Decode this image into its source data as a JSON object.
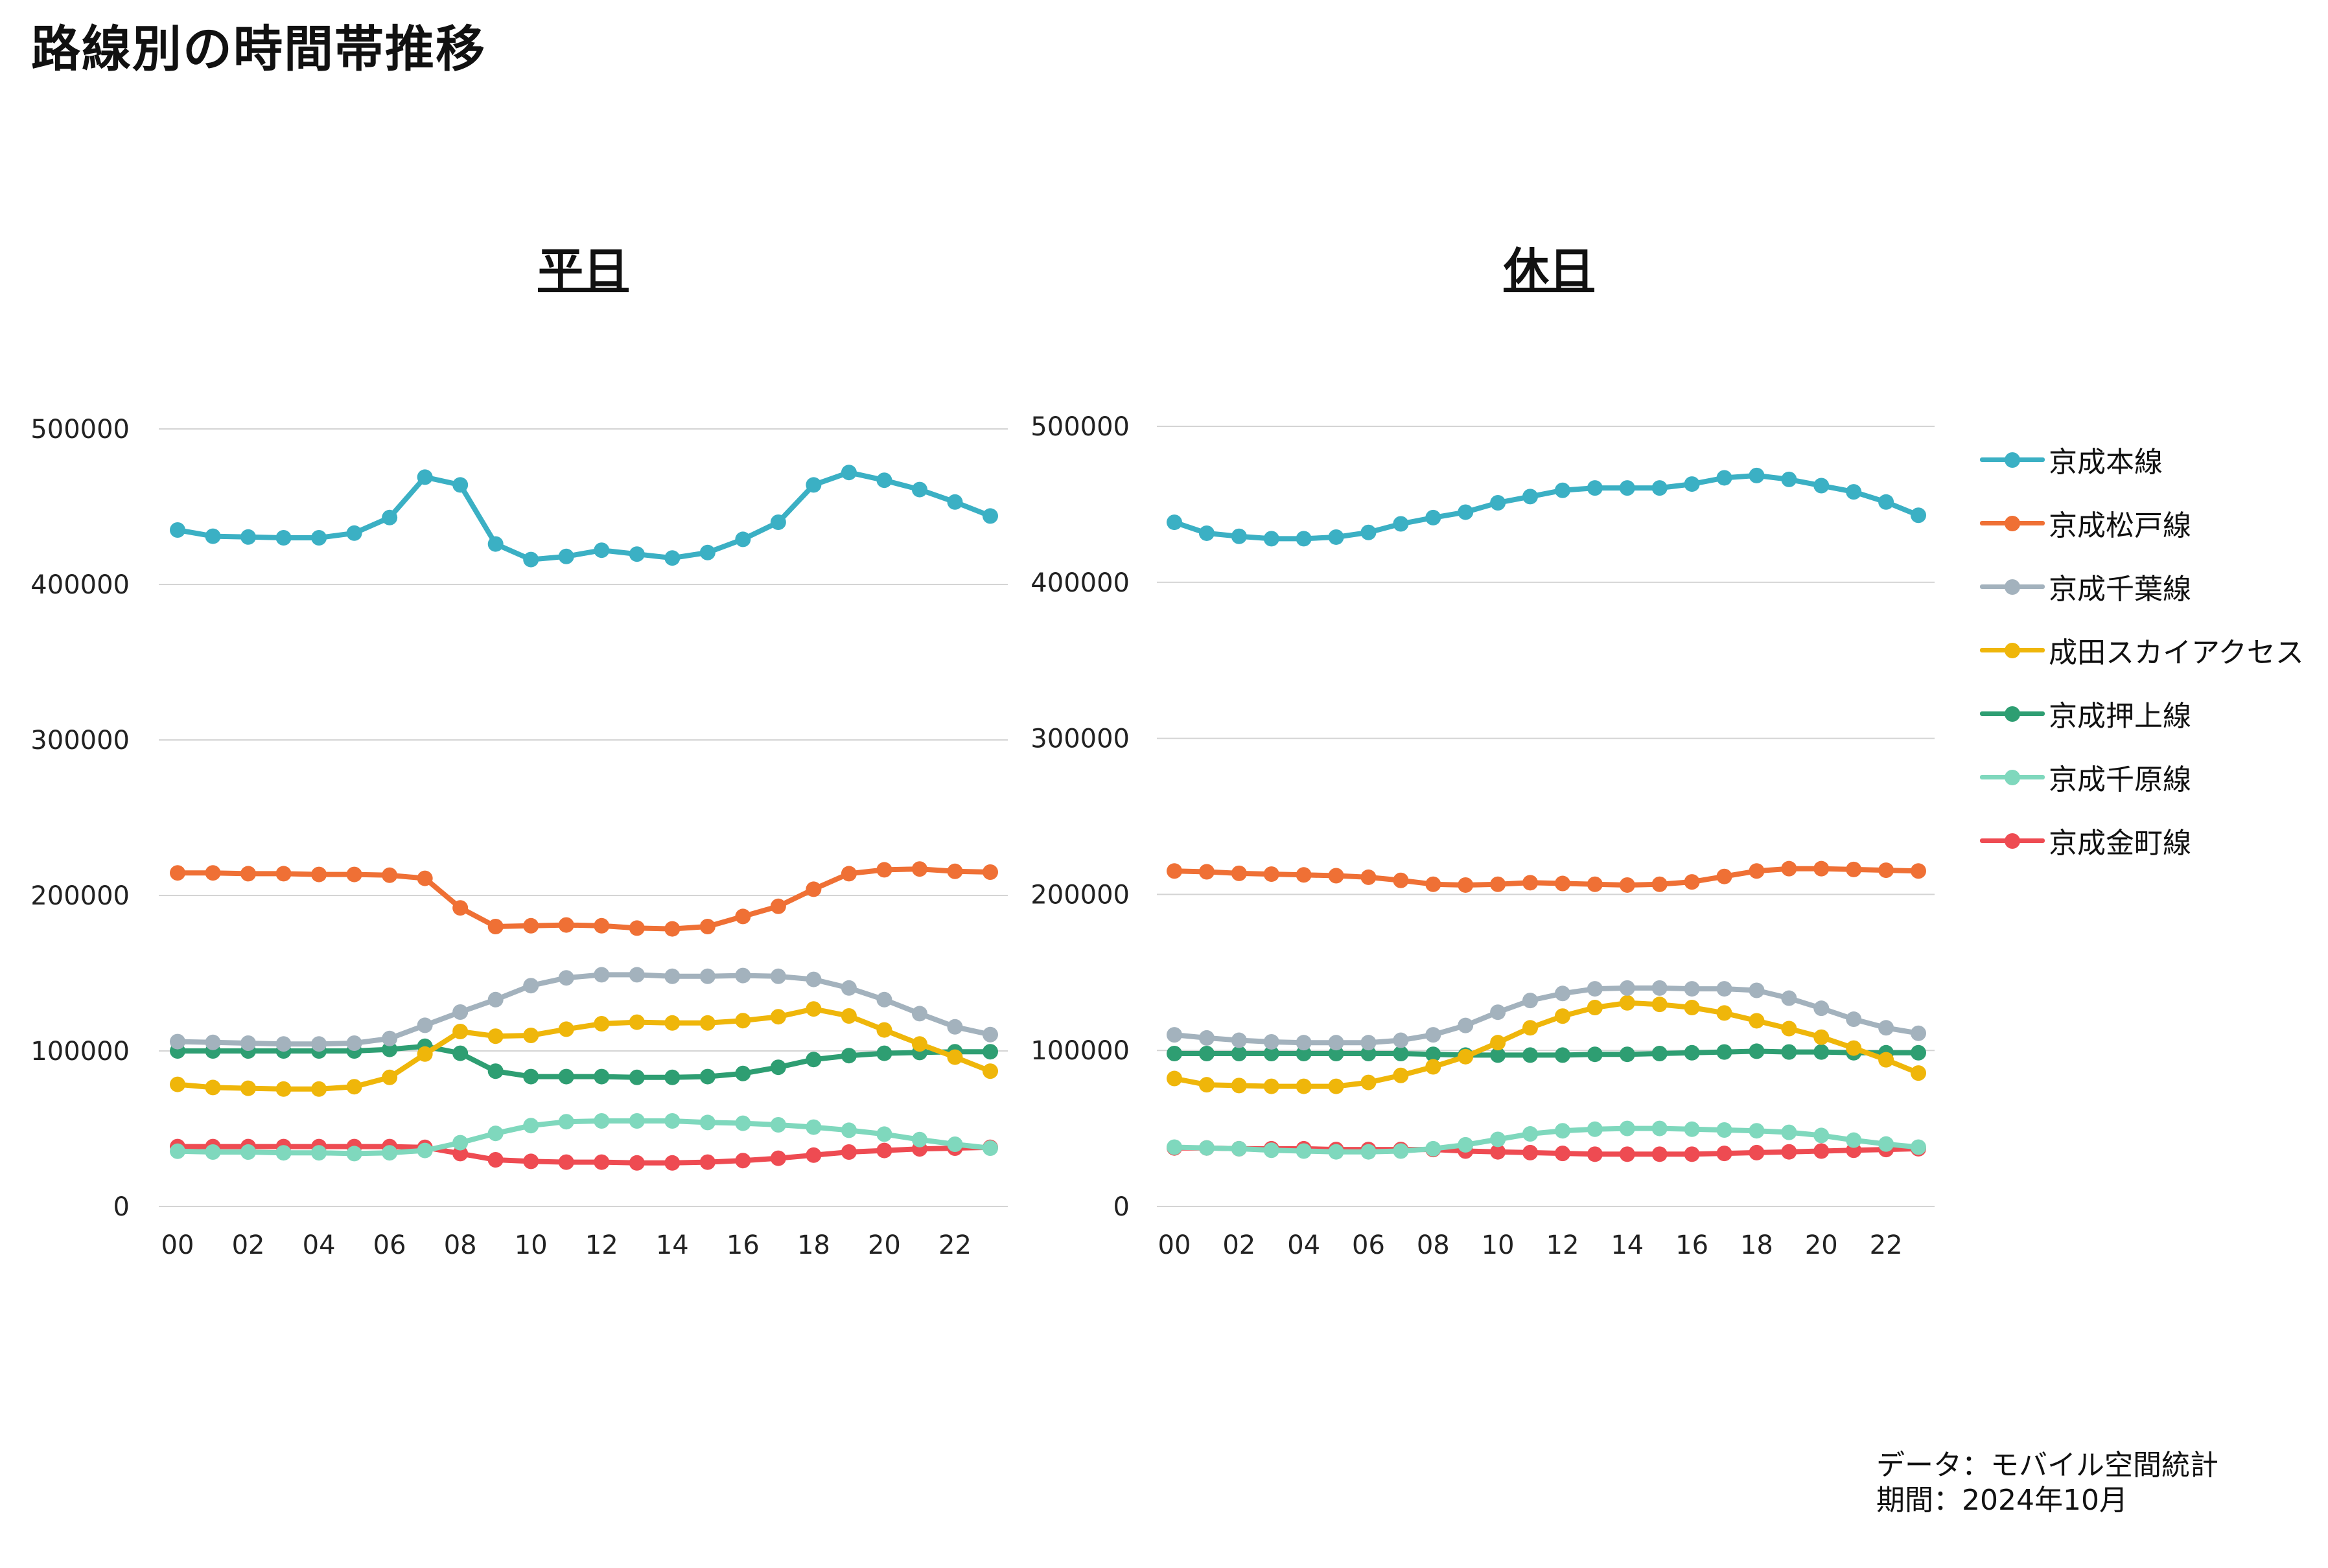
{
  "page": {
    "title": "路線別の時間帯推移"
  },
  "source": {
    "line1": "データ：モバイル空間統計",
    "line2": "期間：2024年10月"
  },
  "colors": {
    "京成本線": "#3bb0c4",
    "京成松戸線": "#ef7035",
    "京成千葉線": "#a3b2bd",
    "成田スカイアクセス": "#efb60a",
    "京成押上線": "#2e9e72",
    "京成千原線": "#7fd8bd",
    "京成金町線": "#ee4b52"
  },
  "legend": [
    {
      "label": "京成本線",
      "color": "#3bb0c4"
    },
    {
      "label": "京成松戸線",
      "color": "#ef7035"
    },
    {
      "label": "京成千葉線",
      "color": "#a3b2bd"
    },
    {
      "label": "成田スカイアクセス",
      "color": "#efb60a"
    },
    {
      "label": "京成押上線",
      "color": "#2e9e72"
    },
    {
      "label": "京成千原線",
      "color": "#7fd8bd"
    },
    {
      "label": "京成金町線",
      "color": "#ee4b52"
    }
  ],
  "chart_data": [
    {
      "type": "line",
      "title": "平日",
      "x": [
        "00",
        "01",
        "02",
        "03",
        "04",
        "05",
        "06",
        "07",
        "08",
        "09",
        "10",
        "11",
        "12",
        "13",
        "14",
        "15",
        "16",
        "17",
        "18",
        "19",
        "20",
        "21",
        "22",
        "23"
      ],
      "xticks": [
        "00",
        "02",
        "04",
        "06",
        "08",
        "10",
        "12",
        "14",
        "16",
        "18",
        "20",
        "22"
      ],
      "ylim": [
        0,
        500000
      ],
      "yticks": [
        "0",
        "100000",
        "200000",
        "300000",
        "400000",
        "500000"
      ],
      "grid": true,
      "series": [
        {
          "name": "京成本線",
          "values": [
            435000,
            431000,
            430500,
            430000,
            430000,
            433000,
            443000,
            469000,
            464000,
            426000,
            416000,
            418000,
            422000,
            419500,
            417000,
            420500,
            429000,
            440000,
            464000,
            472000,
            467000,
            461000,
            453000,
            444000
          ]
        },
        {
          "name": "京成松戸線",
          "values": [
            214500,
            214500,
            214000,
            214000,
            213500,
            213500,
            213000,
            211000,
            192000,
            180000,
            180500,
            181000,
            180500,
            179000,
            178500,
            180000,
            186500,
            193000,
            204000,
            214000,
            216500,
            217000,
            215500,
            215000
          ]
        },
        {
          "name": "京成千葉線",
          "values": [
            106000,
            105500,
            105000,
            104500,
            104500,
            105000,
            108000,
            116500,
            125000,
            133000,
            142000,
            147000,
            149000,
            149000,
            148000,
            148000,
            148500,
            148000,
            146000,
            140500,
            133000,
            124000,
            115500,
            110500
          ]
        },
        {
          "name": "成田スカイアクセス",
          "values": [
            78500,
            76500,
            76000,
            75500,
            75500,
            77000,
            83000,
            98000,
            112500,
            109500,
            110000,
            114000,
            117500,
            118500,
            118000,
            118000,
            119500,
            122000,
            127000,
            122500,
            113500,
            104500,
            96000,
            87000
          ]
        },
        {
          "name": "京成押上線",
          "values": [
            100000,
            100000,
            100000,
            100000,
            100000,
            100000,
            101000,
            103000,
            98500,
            87000,
            83500,
            83500,
            83500,
            83000,
            83000,
            83500,
            85500,
            89500,
            94500,
            97000,
            98500,
            99000,
            99500,
            99500
          ]
        },
        {
          "name": "京成千原線",
          "values": [
            35500,
            35000,
            35000,
            34500,
            34500,
            34000,
            34500,
            36000,
            41000,
            47000,
            52000,
            54500,
            55000,
            55000,
            55000,
            54000,
            53500,
            52500,
            51000,
            49000,
            46500,
            43000,
            40000,
            37500
          ]
        },
        {
          "name": "京成金町線",
          "values": [
            38500,
            38500,
            38500,
            38500,
            38500,
            38500,
            38500,
            38000,
            34000,
            30000,
            29000,
            28500,
            28500,
            28000,
            28000,
            28500,
            29500,
            31000,
            33000,
            35000,
            36000,
            37000,
            37500,
            38000
          ]
        }
      ]
    },
    {
      "type": "line",
      "title": "休日",
      "x": [
        "00",
        "01",
        "02",
        "03",
        "04",
        "05",
        "06",
        "07",
        "08",
        "09",
        "10",
        "11",
        "12",
        "13",
        "14",
        "15",
        "16",
        "17",
        "18",
        "19",
        "20",
        "21",
        "22",
        "23"
      ],
      "xticks": [
        "00",
        "02",
        "04",
        "06",
        "08",
        "10",
        "12",
        "14",
        "16",
        "18",
        "20",
        "22"
      ],
      "ylim": [
        0,
        500000
      ],
      "yticks": [
        "0",
        "100000",
        "200000",
        "300000",
        "400000",
        "500000"
      ],
      "grid": true,
      "series": [
        {
          "name": "京成本線",
          "values": [
            438500,
            431500,
            429500,
            428000,
            428000,
            429000,
            432000,
            437500,
            441500,
            445000,
            451000,
            455000,
            459000,
            460500,
            460500,
            460500,
            463000,
            467000,
            468500,
            466000,
            462000,
            458000,
            451500,
            443000
          ]
        },
        {
          "name": "京成松戸線",
          "values": [
            215000,
            214500,
            213500,
            213000,
            212500,
            212000,
            211000,
            209000,
            206500,
            206000,
            206500,
            207500,
            207000,
            206500,
            206000,
            206500,
            208000,
            211500,
            215000,
            216500,
            216500,
            216000,
            215500,
            215000
          ]
        },
        {
          "name": "京成千葉線",
          "values": [
            110000,
            108000,
            106500,
            105500,
            105000,
            105000,
            105000,
            106500,
            110000,
            116000,
            124500,
            132000,
            136500,
            139500,
            140000,
            140000,
            139500,
            139500,
            138500,
            133500,
            127000,
            120000,
            114500,
            111000
          ]
        },
        {
          "name": "成田スカイアクセス",
          "values": [
            82000,
            78000,
            77500,
            77000,
            77000,
            77000,
            79500,
            84000,
            89500,
            96000,
            105000,
            114500,
            122000,
            127500,
            130500,
            129500,
            127500,
            124000,
            119000,
            114000,
            108500,
            101500,
            94000,
            85500
          ]
        },
        {
          "name": "京成押上線",
          "values": [
            98000,
            98000,
            98000,
            98000,
            98000,
            98000,
            98000,
            98000,
            97500,
            97000,
            97000,
            97000,
            97000,
            97500,
            97500,
            98000,
            98500,
            99000,
            99500,
            99000,
            99000,
            98500,
            98500,
            98500
          ]
        },
        {
          "name": "京成千原線",
          "values": [
            38000,
            37500,
            37000,
            36000,
            35500,
            35000,
            35000,
            35500,
            37000,
            39500,
            43000,
            46500,
            48500,
            49500,
            50000,
            50000,
            49500,
            49000,
            48500,
            47500,
            45500,
            42500,
            40000,
            38000
          ]
        },
        {
          "name": "京成金町線",
          "values": [
            37500,
            37500,
            37000,
            37000,
            37000,
            36500,
            36500,
            36500,
            36500,
            35500,
            35000,
            34500,
            34000,
            33500,
            33500,
            33500,
            33500,
            34000,
            34500,
            35000,
            35500,
            36000,
            36500,
            37000
          ]
        }
      ]
    }
  ]
}
